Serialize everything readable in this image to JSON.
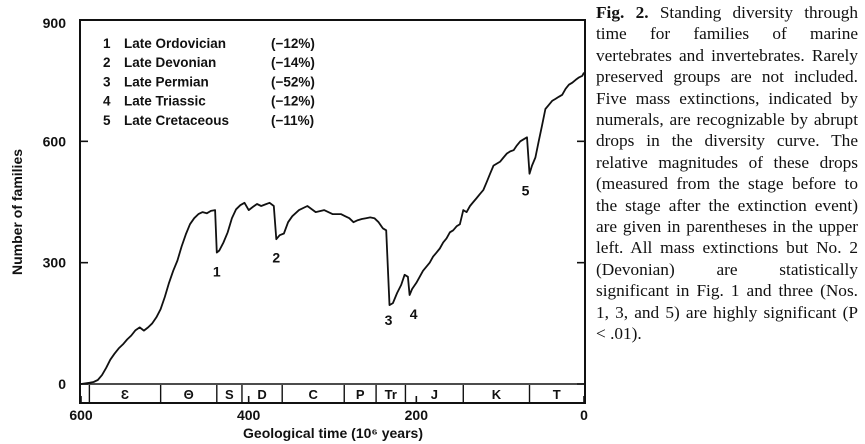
{
  "caption": {
    "label": "Fig. 2.",
    "text": "Standing diversity through time for families of marine vertebrates and invertebrates. Rarely preserved groups are not included. Five mass extinctions, indicated by numerals, are recognizable by abrupt drops in the diversity curve. The relative magnitudes of these drops (measured from the stage before to the stage after the extinction event) are given in parentheses in the upper left. All mass extinctions but No. 2 (Devonian) are statistically significant in Fig. 1 and three (Nos. 1, 3, and 5) are highly significant (P < .01)."
  },
  "chart_data": {
    "type": "line",
    "xlabel": "Geological time (10⁶ years)",
    "ylabel": "Number of families",
    "xlim": [
      600,
      0
    ],
    "ylim": [
      0,
      900
    ],
    "x_ticks": [
      "600",
      "400",
      "200",
      "0"
    ],
    "y_ticks": [
      "0",
      "300",
      "600",
      "900"
    ],
    "legend": [
      {
        "num": "1",
        "name": "Late Ordovician",
        "pct": "(−12%)"
      },
      {
        "num": "2",
        "name": "Late Devonian",
        "pct": "(−14%)"
      },
      {
        "num": "3",
        "name": "Late Permian",
        "pct": "(−52%)"
      },
      {
        "num": "4",
        "name": "Late Triassic",
        "pct": "(−12%)"
      },
      {
        "num": "5",
        "name": "Late Cretaceous",
        "pct": "(−11%)"
      }
    ],
    "extinctions": [
      {
        "label": "1",
        "x": 438,
        "y": 315
      },
      {
        "label": "2",
        "x": 367,
        "y": 350
      },
      {
        "label": "3",
        "x": 232,
        "y": 195
      },
      {
        "label": "4",
        "x": 208,
        "y": 210
      },
      {
        "label": "5",
        "x": 65,
        "y": 515
      }
    ],
    "periods": [
      "Ɛ",
      "Θ",
      "S",
      "D",
      "C",
      "P",
      "Tr",
      "J",
      "K",
      "T"
    ],
    "period_bounds": [
      590,
      505,
      438,
      408,
      360,
      286,
      248,
      213,
      144,
      65,
      0
    ],
    "series": [
      {
        "x": [
          600,
          590,
          585,
          580,
          575,
          570,
          565,
          560,
          555,
          550,
          545,
          540,
          535,
          530,
          525,
          520,
          515,
          510,
          505,
          500,
          495,
          490,
          485,
          480,
          475,
          470,
          465,
          460,
          455,
          450,
          445,
          440,
          438,
          435,
          430,
          425,
          420,
          415,
          410,
          405,
          400,
          395,
          390,
          385,
          380,
          375,
          370,
          367,
          363,
          358,
          353,
          348,
          340,
          330,
          320,
          310,
          300,
          290,
          285,
          280,
          275,
          270,
          265,
          260,
          255,
          250,
          245,
          240,
          236,
          232,
          228,
          223,
          218,
          214,
          210,
          208,
          205,
          200,
          196,
          192,
          188,
          184,
          180,
          176,
          172,
          168,
          164,
          160,
          156,
          152,
          148,
          144,
          140,
          136,
          132,
          128,
          124,
          120,
          116,
          112,
          108,
          104,
          100,
          96,
          92,
          88,
          84,
          80,
          76,
          72,
          68,
          65,
          62,
          58,
          54,
          50,
          46,
          42,
          38,
          34,
          30,
          26,
          22,
          18,
          14,
          10,
          6,
          2,
          0
        ],
        "y": [
          0,
          3,
          5,
          10,
          22,
          40,
          60,
          75,
          88,
          98,
          110,
          120,
          133,
          140,
          132,
          140,
          150,
          165,
          185,
          215,
          250,
          280,
          305,
          340,
          370,
          395,
          410,
          420,
          425,
          422,
          428,
          430,
          325,
          330,
          350,
          375,
          410,
          432,
          442,
          448,
          430,
          438,
          445,
          440,
          444,
          448,
          440,
          358,
          368,
          372,
          400,
          415,
          430,
          440,
          425,
          430,
          420,
          420,
          415,
          410,
          400,
          405,
          408,
          410,
          412,
          410,
          400,
          385,
          380,
          195,
          200,
          225,
          245,
          270,
          265,
          220,
          235,
          250,
          265,
          280,
          290,
          300,
          315,
          325,
          335,
          350,
          360,
          375,
          380,
          390,
          395,
          430,
          425,
          440,
          450,
          460,
          470,
          480,
          500,
          520,
          540,
          545,
          550,
          560,
          570,
          575,
          578,
          590,
          600,
          605,
          610,
          520,
          540,
          560,
          600,
          640,
          680,
          690,
          700,
          705,
          710,
          715,
          730,
          740,
          745,
          752,
          758,
          762,
          770
        ]
      }
    ]
  }
}
